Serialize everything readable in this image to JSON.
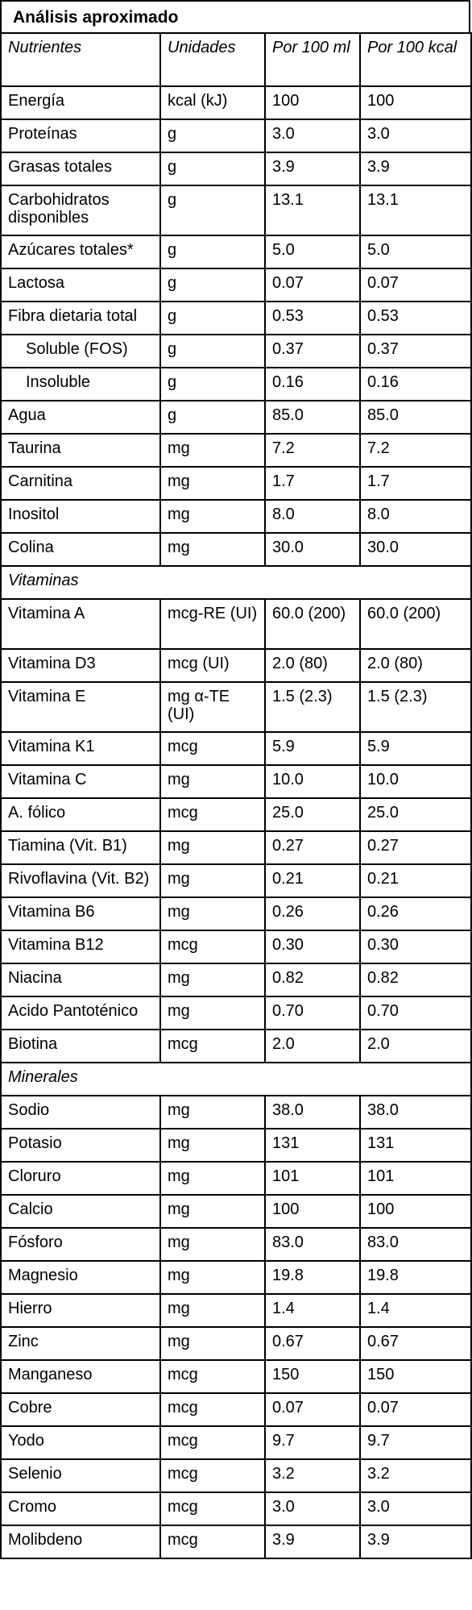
{
  "title": "Análisis aproximado",
  "headers": {
    "nutrient": "Nutrientes",
    "unit": "Unidades",
    "per_100ml": "Por 100 ml",
    "per_100kcal": "Por 100 kcal"
  },
  "rows": [
    {
      "name": "Energía",
      "unit": "kcal (kJ)",
      "v1": "100",
      "v2": "100"
    },
    {
      "name": "Proteínas",
      "unit": "g",
      "v1": "3.0",
      "v2": "3.0"
    },
    {
      "name": "Grasas totales",
      "unit": "g",
      "v1": "3.9",
      "v2": "3.9"
    },
    {
      "name": "Carbohidratos disponibles",
      "unit": "g",
      "v1": "13.1",
      "v2": "13.1"
    },
    {
      "name": "Azúcares totales*",
      "unit": "g",
      "v1": "5.0",
      "v2": "5.0"
    },
    {
      "name": "Lactosa",
      "unit": "g",
      "v1": "0.07",
      "v2": "0.07"
    },
    {
      "name": "Fibra dietaria total",
      "unit": "g",
      "v1": "0.53",
      "v2": "0.53"
    },
    {
      "name": "Soluble (FOS)",
      "unit": "g",
      "v1": "0.37",
      "v2": "0.37"
    },
    {
      "name": "Insoluble",
      "unit": "g",
      "v1": "0.16",
      "v2": "0.16"
    },
    {
      "name": "Agua",
      "unit": "g",
      "v1": "85.0",
      "v2": "85.0"
    },
    {
      "name": "Taurina",
      "unit": "mg",
      "v1": "7.2",
      "v2": "7.2"
    },
    {
      "name": "Carnitina",
      "unit": "mg",
      "v1": "1.7",
      "v2": "1.7"
    },
    {
      "name": "Inositol",
      "unit": "mg",
      "v1": "8.0",
      "v2": "8.0"
    },
    {
      "name": "Colina",
      "unit": "mg",
      "v1": "30.0",
      "v2": "30.0"
    }
  ],
  "vitamins_label": "Vitaminas",
  "vitamins": [
    {
      "name": "Vitamina A",
      "unit": "mcg-RE (UI)",
      "v1": "60.0 (200)",
      "v2": "60.0 (200)"
    },
    {
      "name": "Vitamina D3",
      "unit": "mcg (UI)",
      "v1": "2.0 (80)",
      "v2": "2.0 (80)"
    },
    {
      "name": "Vitamina E",
      "unit": "mg α-TE (UI)",
      "v1": "1.5 (2.3)",
      "v2": "1.5 (2.3)"
    },
    {
      "name": "Vitamina K1",
      "unit": "mcg",
      "v1": "5.9",
      "v2": "5.9"
    },
    {
      "name": "Vitamina C",
      "unit": "mg",
      "v1": "10.0",
      "v2": "10.0"
    },
    {
      "name": "A. fólico",
      "unit": "mcg",
      "v1": "25.0",
      "v2": "25.0"
    },
    {
      "name": "Tiamina (Vit. B1)",
      "unit": "mg",
      "v1": "0.27",
      "v2": "0.27"
    },
    {
      "name": "Rivoflavina (Vit. B2)",
      "unit": "mg",
      "v1": "0.21",
      "v2": "0.21"
    },
    {
      "name": "Vitamina B6",
      "unit": "mg",
      "v1": "0.26",
      "v2": "0.26"
    },
    {
      "name": "Vitamina B12",
      "unit": "mcg",
      "v1": "0.30",
      "v2": "0.30"
    },
    {
      "name": "Niacina",
      "unit": "mg",
      "v1": "0.82",
      "v2": "0.82"
    },
    {
      "name": "Acido Pantoténico",
      "unit": "mg",
      "v1": "0.70",
      "v2": "0.70"
    },
    {
      "name": "Biotina",
      "unit": "mcg",
      "v1": "2.0",
      "v2": "2.0"
    }
  ],
  "minerals_label": "Minerales",
  "minerals": [
    {
      "name": "Sodio",
      "unit": "mg",
      "v1": "38.0",
      "v2": "38.0"
    },
    {
      "name": "Potasio",
      "unit": "mg",
      "v1": "131",
      "v2": "131"
    },
    {
      "name": "Cloruro",
      "unit": "mg",
      "v1": "101",
      "v2": "101"
    },
    {
      "name": "Calcio",
      "unit": "mg",
      "v1": "100",
      "v2": "100"
    },
    {
      "name": "Fósforo",
      "unit": "mg",
      "v1": "83.0",
      "v2": "83.0"
    },
    {
      "name": "Magnesio",
      "unit": "mg",
      "v1": "19.8",
      "v2": "19.8"
    },
    {
      "name": "Hierro",
      "unit": "mg",
      "v1": "1.4",
      "v2": "1.4"
    },
    {
      "name": "Zinc",
      "unit": "mg",
      "v1": "0.67",
      "v2": "0.67"
    },
    {
      "name": "Manganeso",
      "unit": "mcg",
      "v1": "150",
      "v2": "150"
    },
    {
      "name": "Cobre",
      "unit": "mcg",
      "v1": "0.07",
      "v2": "0.07"
    },
    {
      "name": "Yodo",
      "unit": "mcg",
      "v1": "9.7",
      "v2": "9.7"
    },
    {
      "name": "Selenio",
      "unit": "mcg",
      "v1": "3.2",
      "v2": "3.2"
    },
    {
      "name": "Cromo",
      "unit": "mcg",
      "v1": "3.0",
      "v2": "3.0"
    },
    {
      "name": "Molibdeno",
      "unit": "mcg",
      "v1": "3.9",
      "v2": "3.9"
    }
  ]
}
